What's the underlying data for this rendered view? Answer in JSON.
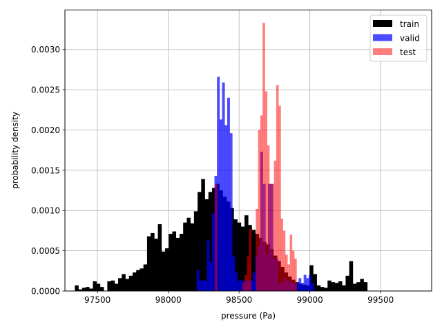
{
  "chart_data": {
    "type": "bar",
    "xlabel": "pressure (Pa)",
    "ylabel": "probability density",
    "xlim": [
      97270,
      99860
    ],
    "ylim": [
      0,
      0.00349
    ],
    "xticks": [
      97500,
      98000,
      98500,
      99000,
      99500
    ],
    "xtick_labels": [
      "97500",
      "98000",
      "98500",
      "99000",
      "99500"
    ],
    "yticks": [
      0,
      0.0005,
      0.001,
      0.0015,
      0.002,
      0.0025,
      0.003
    ],
    "ytick_labels": [
      "0.0000",
      "0.0005",
      "0.0010",
      "0.0015",
      "0.0020",
      "0.0025",
      "0.0030"
    ],
    "grid": true,
    "legend_position": "top-right",
    "series": [
      {
        "name": "train",
        "color": "#000000",
        "alpha": 1.0,
        "bin_start": 97340,
        "bin_width": 25.5,
        "values": [
          7e-05,
          2e-05,
          4e-05,
          5e-05,
          3e-05,
          0.00012,
          9e-05,
          5e-05,
          0.0,
          0.00012,
          0.00013,
          9e-05,
          0.00016,
          0.00021,
          0.00015,
          0.00019,
          0.00023,
          0.00026,
          0.00028,
          0.00033,
          0.00068,
          0.00072,
          0.00065,
          0.00083,
          0.00049,
          0.00053,
          0.00071,
          0.00074,
          0.00066,
          0.00071,
          0.00085,
          0.00091,
          0.00084,
          0.00099,
          0.00123,
          0.00139,
          0.00114,
          0.00123,
          0.00128,
          0.00133,
          0.00125,
          0.00117,
          0.00111,
          0.00103,
          0.00089,
          0.00085,
          0.0008,
          0.00094,
          0.00082,
          0.00076,
          0.00071,
          0.00066,
          0.00061,
          0.00058,
          0.00052,
          0.00044,
          0.00037,
          0.0003,
          0.00023,
          0.00018,
          0.00014,
          0.00011,
          9e-05,
          8e-05,
          7e-05,
          0.00032,
          0.00021,
          7e-05,
          5e-05,
          4e-05,
          0.00013,
          0.00011,
          0.0001,
          0.00012,
          7e-05,
          0.00019,
          0.00037,
          9e-05,
          0.00011,
          0.00015,
          0.00011
        ]
      },
      {
        "name": "valid",
        "color": "#0000ff",
        "alpha": 0.7,
        "bin_start": 98200,
        "bin_width": 18.0,
        "values": [
          0.00026,
          0.00013,
          0.00013,
          0.00013,
          0.00063,
          0.00036,
          0.00096,
          0.00143,
          0.00266,
          0.00213,
          0.00259,
          0.00206,
          0.0024,
          0.00196,
          0.00043,
          0.00023,
          0.00013,
          0.00013,
          0.00013,
          0.00013,
          0.00013,
          0.00013,
          0.00023,
          0.00043,
          0.00056,
          0.00173,
          0.00133,
          0.00046,
          0.00133,
          0.00133,
          0.0004,
          0.0004,
          0.0001,
          0.0001,
          0.00016,
          0.00013,
          0.00013,
          0.0001,
          0.0001,
          0.0001,
          0.00016,
          0.0001,
          0.0002,
          0.00016,
          0.0002,
          0.0001
        ]
      },
      {
        "name": "test",
        "color": "#ff0000",
        "alpha": 0.5,
        "bin_start": 98330,
        "bin_width": 16.0,
        "values": [
          0.00133,
          0.0,
          0.0,
          0.0,
          0.0,
          0.0,
          0.0,
          0.0,
          0.0,
          0.0,
          0.0,
          0.0,
          0.0001,
          0.0002,
          0.00043,
          0.00077,
          0.0,
          0.0,
          0.00102,
          0.002,
          0.00218,
          0.00333,
          0.00248,
          0.00181,
          0.00133,
          0.00133,
          0.00162,
          0.00256,
          0.0023,
          0.0009,
          0.00075,
          0.00045,
          0.00033,
          0.0007,
          0.0005,
          0.0004
        ]
      }
    ]
  }
}
